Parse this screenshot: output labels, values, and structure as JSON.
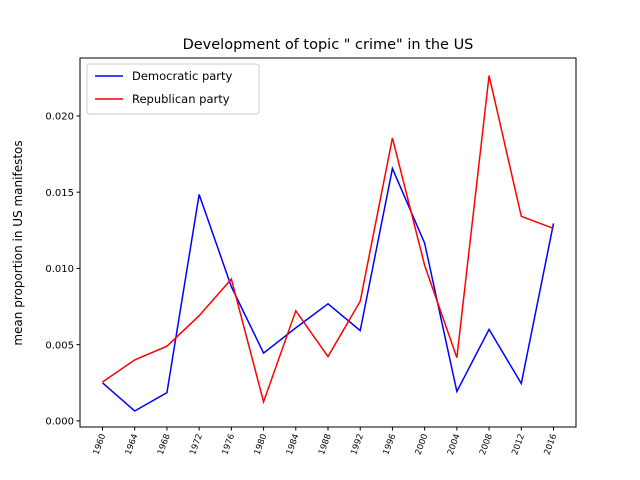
{
  "chart_data": {
    "type": "line",
    "title": "Development of topic \" crime\" in the US",
    "xlabel": "",
    "ylabel": "mean proportion in US manifestos",
    "categories": [
      "1960",
      "1964",
      "1968",
      "1972",
      "1976",
      "1980",
      "1984",
      "1988",
      "1992",
      "1996",
      "2000",
      "2004",
      "2008",
      "2012",
      "2016"
    ],
    "ylim": [
      -0.0004,
      0.0238
    ],
    "yticks": [
      0.0,
      0.005,
      0.01,
      0.015,
      0.02
    ],
    "ytick_labels": [
      "0.000",
      "0.005",
      "0.010",
      "0.015",
      "0.020"
    ],
    "legend_position": "upper-left",
    "series": [
      {
        "name": "Democratic party",
        "color": "#0000ff",
        "values": [
          0.0025,
          0.00065,
          0.00185,
          0.01485,
          0.0088,
          0.00445,
          0.0061,
          0.00768,
          0.00592,
          0.01655,
          0.01165,
          0.00193,
          0.006,
          0.00245,
          0.01295
        ]
      },
      {
        "name": "Republican party",
        "color": "#ff0000",
        "values": [
          0.00255,
          0.004,
          0.0049,
          0.0069,
          0.0093,
          0.00125,
          0.00722,
          0.00422,
          0.00785,
          0.01855,
          0.0102,
          0.00415,
          0.02265,
          0.01342,
          0.01262
        ]
      }
    ]
  }
}
